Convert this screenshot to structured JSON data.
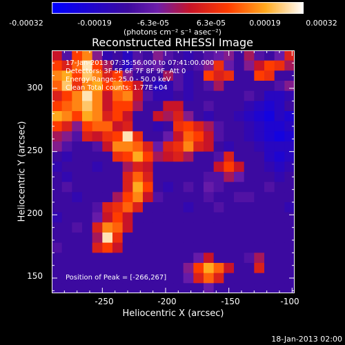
{
  "colorbar": {
    "ticks": [
      "-0.00032",
      "-0.00019",
      "-6.3e-05",
      "6.3e-05",
      "0.00019",
      "0.00032"
    ],
    "units": "(photons cm⁻² s⁻¹ asec⁻²)",
    "range": [
      -0.00032,
      0.00032
    ]
  },
  "chart_data": {
    "type": "heatmap",
    "title": "Reconstructed RHESSI Image",
    "xlabel": "Heliocentric X (arcsec)",
    "ylabel": "Heliocentric Y (arcsec)",
    "xlim": [
      -290,
      -98
    ],
    "ylim": [
      138,
      330
    ],
    "xticks": [
      "-250",
      "-200",
      "-150",
      "-100"
    ],
    "yticks": [
      "150",
      "200",
      "250",
      "300"
    ],
    "annotations": [
      "17-Jan-2013 07:35:56.000 to 07:41:00.000",
      "Detectors: 3F 5F 6F 7F 8F 9F, Att 0",
      "Energy Range: 25.0 - 50.0 keV",
      "Clean     Total counts: 1.77E+04"
    ],
    "peak_label": "Position of Peak = [-266,267]",
    "grid_values": [
      [
        0.55,
        0.35,
        0.7,
        0.8,
        0.45,
        0.25,
        0.3,
        0.2,
        0.35,
        0.3,
        0.45,
        0.35,
        0.3,
        0.25,
        0.3,
        0.35,
        0.4,
        0.45,
        0.3,
        0.5,
        0.35,
        0.3,
        0.4,
        0.6
      ],
      [
        0.7,
        0.6,
        0.75,
        0.95,
        0.7,
        0.5,
        0.3,
        0.2,
        0.4,
        0.35,
        0.4,
        0.3,
        0.35,
        0.3,
        0.35,
        0.45,
        0.65,
        0.4,
        0.3,
        0.45,
        0.55,
        0.7,
        0.65,
        0.5
      ],
      [
        0.8,
        0.85,
        0.7,
        0.9,
        0.8,
        0.6,
        0.7,
        0.45,
        0.3,
        0.3,
        0.3,
        0.5,
        0.35,
        0.25,
        0.3,
        0.7,
        0.6,
        0.65,
        0.3,
        0.3,
        0.7,
        0.65,
        0.3,
        0.3
      ],
      [
        0.75,
        0.9,
        0.65,
        0.8,
        0.85,
        0.7,
        0.8,
        0.7,
        0.55,
        0.3,
        0.2,
        0.25,
        0.35,
        0.25,
        0.3,
        0.35,
        0.5,
        0.3,
        0.3,
        0.3,
        0.3,
        0.3,
        0.35,
        0.45
      ],
      [
        0.6,
        0.7,
        0.8,
        0.95,
        0.8,
        0.55,
        0.75,
        0.8,
        0.55,
        0.35,
        0.25,
        0.25,
        0.3,
        0.25,
        0.3,
        0.3,
        0.3,
        0.3,
        0.3,
        0.35,
        0.3,
        0.2,
        0.2,
        0.25
      ],
      [
        0.7,
        0.75,
        0.8,
        0.9,
        0.8,
        0.55,
        0.7,
        0.7,
        0.5,
        0.3,
        0.3,
        0.55,
        0.55,
        0.3,
        0.3,
        0.35,
        0.3,
        0.3,
        0.3,
        0.25,
        0.2,
        0.15,
        0.2,
        0.3
      ],
      [
        0.85,
        0.8,
        0.7,
        0.85,
        0.8,
        0.6,
        0.7,
        0.55,
        0.3,
        0.3,
        0.55,
        0.5,
        0.6,
        0.45,
        0.3,
        0.25,
        0.3,
        0.3,
        0.25,
        0.2,
        0.15,
        0.1,
        0.2,
        0.15
      ],
      [
        0.7,
        0.6,
        0.45,
        0.7,
        0.75,
        0.75,
        0.55,
        0.6,
        0.3,
        0.3,
        0.25,
        0.3,
        0.65,
        0.7,
        0.6,
        0.5,
        0.35,
        0.3,
        0.3,
        0.25,
        0.2,
        0.15,
        0.15,
        0.2
      ],
      [
        0.5,
        0.45,
        0.35,
        0.6,
        0.55,
        0.65,
        0.7,
        0.95,
        0.65,
        0.3,
        0.3,
        0.4,
        0.55,
        0.75,
        0.7,
        0.55,
        0.35,
        0.3,
        0.3,
        0.25,
        0.2,
        0.15,
        0.1,
        0.15
      ],
      [
        0.45,
        0.35,
        0.3,
        0.3,
        0.35,
        0.55,
        0.8,
        0.8,
        0.75,
        0.6,
        0.4,
        0.6,
        0.65,
        0.8,
        0.6,
        0.55,
        0.3,
        0.25,
        0.3,
        0.3,
        0.25,
        0.2,
        0.2,
        0.2
      ],
      [
        0.3,
        0.25,
        0.3,
        0.3,
        0.3,
        0.3,
        0.65,
        0.7,
        0.85,
        0.7,
        0.5,
        0.55,
        0.6,
        0.5,
        0.3,
        0.3,
        0.35,
        0.6,
        0.3,
        0.3,
        0.3,
        0.2,
        0.15,
        0.2
      ],
      [
        0.25,
        0.3,
        0.3,
        0.3,
        0.25,
        0.3,
        0.3,
        0.5,
        0.6,
        0.55,
        0.3,
        0.3,
        0.3,
        0.3,
        0.3,
        0.3,
        0.55,
        0.7,
        0.55,
        0.3,
        0.3,
        0.25,
        0.2,
        0.25
      ],
      [
        0.3,
        0.25,
        0.3,
        0.3,
        0.3,
        0.3,
        0.3,
        0.6,
        0.75,
        0.6,
        0.3,
        0.3,
        0.3,
        0.3,
        0.3,
        0.35,
        0.35,
        0.5,
        0.4,
        0.3,
        0.3,
        0.3,
        0.25,
        0.3
      ],
      [
        0.3,
        0.35,
        0.3,
        0.3,
        0.3,
        0.3,
        0.3,
        0.6,
        0.85,
        0.7,
        0.3,
        0.25,
        0.3,
        0.35,
        0.3,
        0.4,
        0.35,
        0.3,
        0.3,
        0.3,
        0.3,
        0.35,
        0.3,
        0.3
      ],
      [
        0.3,
        0.3,
        0.25,
        0.3,
        0.3,
        0.3,
        0.5,
        0.7,
        0.8,
        0.55,
        0.35,
        0.3,
        0.3,
        0.3,
        0.3,
        0.35,
        0.3,
        0.3,
        0.35,
        0.35,
        0.3,
        0.3,
        0.3,
        0.3
      ],
      [
        0.3,
        0.3,
        0.3,
        0.3,
        0.35,
        0.6,
        0.65,
        0.75,
        0.6,
        0.3,
        0.3,
        0.3,
        0.3,
        0.25,
        0.3,
        0.3,
        0.35,
        0.3,
        0.3,
        0.3,
        0.3,
        0.3,
        0.3,
        0.25
      ],
      [
        0.25,
        0.3,
        0.3,
        0.3,
        0.4,
        0.55,
        0.7,
        0.55,
        0.3,
        0.3,
        0.3,
        0.3,
        0.3,
        0.3,
        0.3,
        0.3,
        0.3,
        0.3,
        0.3,
        0.3,
        0.3,
        0.3,
        0.3,
        0.3
      ],
      [
        0.3,
        0.3,
        0.35,
        0.3,
        0.6,
        0.8,
        0.75,
        0.55,
        0.3,
        0.3,
        0.3,
        0.3,
        0.3,
        0.3,
        0.3,
        0.3,
        0.3,
        0.3,
        0.3,
        0.3,
        0.3,
        0.3,
        0.3,
        0.3
      ],
      [
        0.3,
        0.3,
        0.3,
        0.3,
        0.5,
        0.95,
        0.65,
        0.3,
        0.3,
        0.3,
        0.3,
        0.3,
        0.3,
        0.3,
        0.3,
        0.3,
        0.3,
        0.3,
        0.3,
        0.3,
        0.3,
        0.3,
        0.3,
        0.3
      ],
      [
        0.35,
        0.3,
        0.3,
        0.3,
        0.6,
        0.7,
        0.55,
        0.3,
        0.3,
        0.3,
        0.3,
        0.3,
        0.3,
        0.3,
        0.3,
        0.3,
        0.3,
        0.3,
        0.3,
        0.3,
        0.3,
        0.3,
        0.3,
        0.3
      ],
      [
        0.3,
        0.3,
        0.3,
        0.3,
        0.3,
        0.3,
        0.3,
        0.3,
        0.3,
        0.3,
        0.3,
        0.3,
        0.3,
        0.3,
        0.4,
        0.55,
        0.3,
        0.3,
        0.3,
        0.35,
        0.5,
        0.3,
        0.3,
        0.3
      ],
      [
        0.3,
        0.3,
        0.3,
        0.3,
        0.3,
        0.3,
        0.3,
        0.3,
        0.3,
        0.3,
        0.3,
        0.3,
        0.3,
        0.45,
        0.7,
        0.85,
        0.75,
        0.55,
        0.3,
        0.3,
        0.6,
        0.3,
        0.3,
        0.3
      ],
      [
        0.3,
        0.3,
        0.3,
        0.3,
        0.3,
        0.3,
        0.3,
        0.3,
        0.3,
        0.3,
        0.3,
        0.3,
        0.3,
        0.4,
        0.6,
        0.75,
        0.6,
        0.3,
        0.3,
        0.3,
        0.3,
        0.3,
        0.3,
        0.3
      ],
      [
        0.3,
        0.3,
        0.3,
        0.3,
        0.3,
        0.3,
        0.3,
        0.3,
        0.3,
        0.3,
        0.3,
        0.3,
        0.3,
        0.3,
        0.3,
        0.4,
        0.3,
        0.3,
        0.3,
        0.3,
        0.3,
        0.3,
        0.3,
        0.3
      ]
    ]
  },
  "footer": {
    "timestamp": "18-Jan-2013 02:00"
  }
}
